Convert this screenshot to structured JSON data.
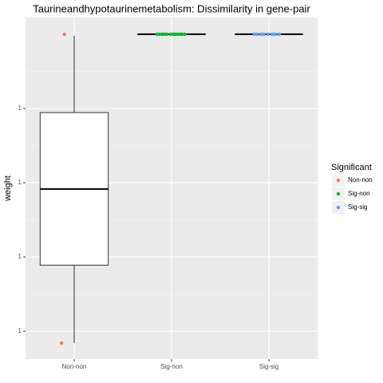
{
  "chart_data": {
    "type": "box",
    "title": "Taurineandhypotaurinemetabolism: Dissimilarity in gene-pair",
    "ylabel": "weight",
    "categories": [
      "Non-non",
      "Sig-non",
      "Sig-sig"
    ],
    "ylim": [
      0.9999525,
      1.0000445
    ],
    "yticks": [
      {
        "value": 0.99996,
        "label": "1"
      },
      {
        "value": 0.99998,
        "label": "1"
      },
      1,
      {
        "value": 1.00002,
        "label": "1"
      }
    ],
    "grid": true,
    "legend": {
      "title": "Significant",
      "position": "right"
    },
    "boxes": [
      {
        "name": "Non-non",
        "color": "#F8766D",
        "whisker_low": 0.9999568,
        "q1": 0.9999778,
        "median": 0.9999983,
        "q3": 1.0000189,
        "whisker_high": 1.0000396,
        "points": [
          1.00004,
          0.9999568
        ]
      },
      {
        "name": "Sig-non",
        "color": "#00BA38",
        "whisker_low": 1.00004,
        "q1": 1.00004,
        "median": 1.00004,
        "q3": 1.00004,
        "whisker_high": 1.00004,
        "points": [
          1.00004,
          1.00004,
          1.00004,
          1.00004,
          1.00004,
          1.00004,
          1.00004,
          1.00004,
          1.00004,
          1.00004,
          1.00004,
          1.00004
        ]
      },
      {
        "name": "Sig-sig",
        "color": "#619CFF",
        "whisker_low": 1.00004,
        "q1": 1.00004,
        "median": 1.00004,
        "q3": 1.00004,
        "whisker_high": 1.00004,
        "points": [
          1.00004,
          1.00004,
          1.00004,
          1.00004,
          1.00004,
          1.00004,
          1.00004,
          1.00004
        ]
      }
    ]
  }
}
